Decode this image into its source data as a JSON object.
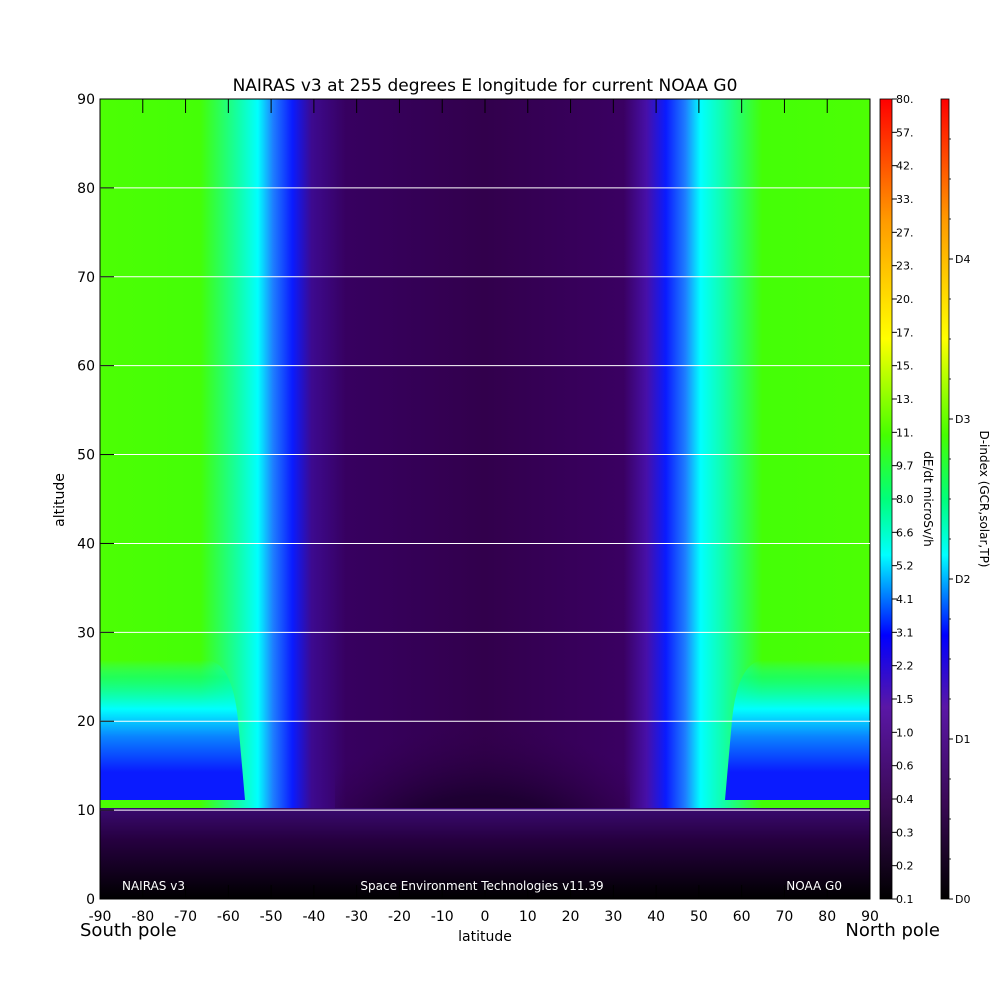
{
  "chart_data": {
    "type": "heatmap",
    "title": "NAIRAS v3 at 255 degrees E longitude for current NOAA G0",
    "xlabel": "latitude",
    "ylabel": "altitude",
    "xlim": [
      -90,
      90
    ],
    "ylim": [
      0,
      90
    ],
    "x_ticks": [
      -90,
      -80,
      -70,
      -60,
      -50,
      -40,
      -30,
      -20,
      -10,
      0,
      10,
      20,
      30,
      40,
      50,
      60,
      70,
      80,
      90
    ],
    "y_ticks": [
      0,
      10,
      20,
      30,
      40,
      50,
      60,
      70,
      80,
      90
    ],
    "x_tick_labels": [
      "-90",
      "-80",
      "-70",
      "-60",
      "-50",
      "-40",
      "-30",
      "-20",
      "-10",
      "0",
      "10",
      "20",
      "30",
      "40",
      "50",
      "60",
      "70",
      "80",
      "90"
    ],
    "y_tick_labels": [
      "0",
      "10",
      "20",
      "30",
      "40",
      "50",
      "60",
      "70",
      "80",
      "90"
    ],
    "grid": "horizontal lines at each altitude tick",
    "x_end_labels": {
      "left": "South pole",
      "right": "North pole"
    },
    "annotations": {
      "left": "NAIRAS v3",
      "center": "Space Environment Technologies v11.39",
      "right": "NOAA G0"
    },
    "colorbar_dose": {
      "label": "dE/dt microSv/h",
      "ticks": [
        "0.1",
        "0.2",
        "0.3",
        "0.4",
        "0.6",
        "1.0",
        "1.5",
        "2.2",
        "3.1",
        "4.1",
        "5.2",
        "6.6",
        "8.0",
        "9.7",
        "11.",
        "13.",
        "15.",
        "17.",
        "20.",
        "23.",
        "27.",
        "33.",
        "42.",
        "57.",
        "80."
      ]
    },
    "colorbar_dindex": {
      "label": "D-index (GCR,solar,TP)",
      "ticks": [
        "D0",
        "D1",
        "D2",
        "D3",
        "D4"
      ]
    },
    "colormap": [
      "#000000",
      "#3a0a55",
      "#5a17a6",
      "#0000ff",
      "#00ffff",
      "#00ff7a",
      "#46ff00",
      "#ffff00",
      "#ff9900",
      "#ff0000"
    ],
    "band_colors": {
      "equatorial_core": "#33004e",
      "equatorial_low": "#16000f",
      "transition": "#0a1bff",
      "high_latitude": "#49ff04",
      "ground": "#000000"
    }
  }
}
